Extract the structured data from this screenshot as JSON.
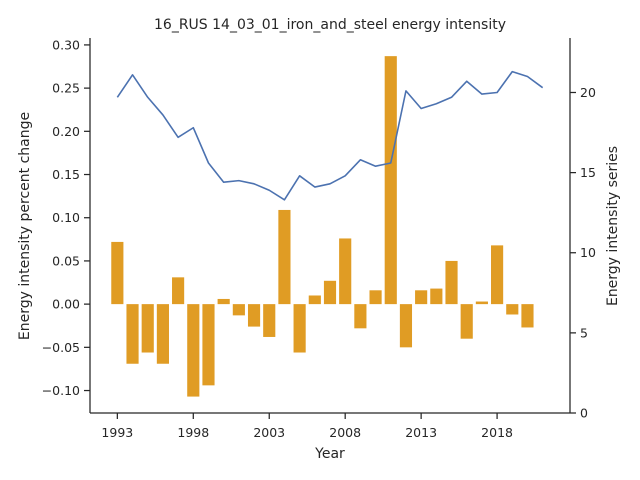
{
  "chart_data": {
    "type": "bar+line",
    "title": "16_RUS 14_03_01_iron_and_steel energy intensity",
    "xlabel": "Year",
    "ylabel_left": "Energy intensity percent change",
    "ylabel_right": "Energy intensity series",
    "x": [
      1993,
      1994,
      1995,
      1996,
      1997,
      1998,
      1999,
      2000,
      2001,
      2002,
      2003,
      2004,
      2005,
      2006,
      2007,
      2008,
      2009,
      2010,
      2011,
      2012,
      2013,
      2014,
      2015,
      2016,
      2017,
      2018,
      2019,
      2020,
      2021
    ],
    "xlim": [
      1991.2,
      2022.8
    ],
    "x_ticks": [
      1993,
      1998,
      2003,
      2008,
      2013,
      2018
    ],
    "x_tick_labels": [
      "1993",
      "1998",
      "2003",
      "2008",
      "2013",
      "2018"
    ],
    "ylim_left": [
      -0.126,
      0.308
    ],
    "y_ticks_left": [
      -0.1,
      -0.05,
      0.0,
      0.05,
      0.1,
      0.15,
      0.2,
      0.25,
      0.3
    ],
    "y_tick_labels_left": [
      "−0.10",
      "−0.05",
      "0.00",
      "0.05",
      "0.10",
      "0.15",
      "0.20",
      "0.25",
      "0.30"
    ],
    "ylim_right": [
      0,
      23.4
    ],
    "y_ticks_right": [
      0,
      5,
      10,
      15,
      20
    ],
    "y_tick_labels_right": [
      "0",
      "5",
      "10",
      "15",
      "20"
    ],
    "grid": false,
    "series": [
      {
        "kind": "bar",
        "axis": "left",
        "color": "#e09c24",
        "values": [
          0.072,
          -0.069,
          -0.056,
          -0.069,
          0.031,
          -0.107,
          -0.094,
          0.006,
          -0.013,
          -0.026,
          -0.038,
          0.109,
          -0.056,
          0.01,
          0.027,
          0.076,
          -0.028,
          0.016,
          0.287,
          -0.05,
          0.016,
          0.018,
          0.05,
          -0.04,
          0.003,
          0.068,
          -0.012,
          -0.027,
          null
        ]
      },
      {
        "kind": "line",
        "axis": "right",
        "color": "#4c72b0",
        "values": [
          19.7,
          21.1,
          19.7,
          18.6,
          17.2,
          17.8,
          15.6,
          14.4,
          14.5,
          14.3,
          13.9,
          13.3,
          14.8,
          14.1,
          14.3,
          14.8,
          15.8,
          15.4,
          15.6,
          20.1,
          19.0,
          19.3,
          19.7,
          20.7,
          19.9,
          20.0,
          21.3,
          21.0,
          20.3
        ]
      }
    ]
  }
}
